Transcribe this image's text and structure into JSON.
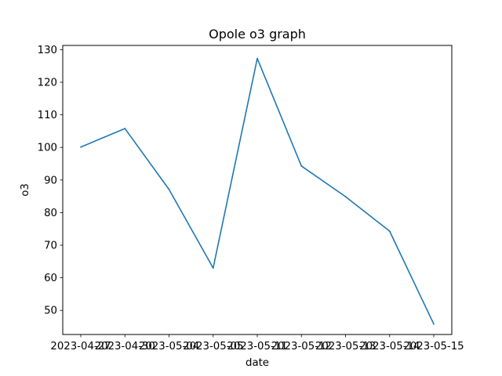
{
  "chart_data": {
    "type": "line",
    "title": "Opole o3 graph",
    "xlabel": "date",
    "ylabel": "o3",
    "x": [
      "2023-04-27",
      "2023-04-30",
      "2023-05-04",
      "2023-05-05",
      "2023-05-11",
      "2023-05-12",
      "2023-05-13",
      "2023-05-14",
      "2023-05-15"
    ],
    "series": [
      {
        "values": [
          100.1,
          105.8,
          87.1,
          63.0,
          127.3,
          94.3,
          84.9,
          74.3,
          45.8
        ],
        "color": "#1f77b4"
      }
    ],
    "ylim": [
      42.6,
      131.3
    ],
    "yticks": [
      50,
      60,
      70,
      80,
      90,
      100,
      110,
      120,
      130
    ],
    "grid": false,
    "legend": "none"
  }
}
